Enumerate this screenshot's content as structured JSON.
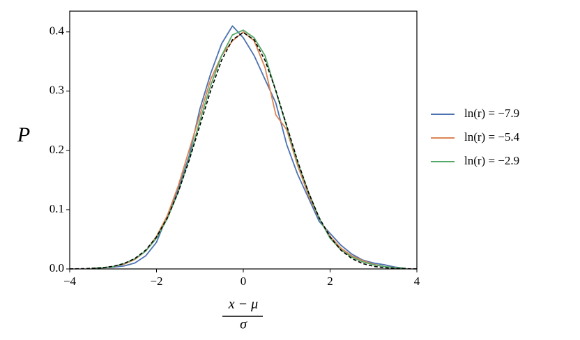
{
  "chart_data": {
    "type": "line",
    "ylabel": "P",
    "xlabel_numerator": "x − μ",
    "xlabel_denominator": "σ",
    "x": [
      -4,
      -3.75,
      -3.5,
      -3.25,
      -3,
      -2.75,
      -2.5,
      -2.25,
      -2,
      -1.75,
      -1.5,
      -1.25,
      -1,
      -0.75,
      -0.5,
      -0.25,
      0,
      0.25,
      0.5,
      0.75,
      1,
      1.25,
      1.5,
      1.75,
      2,
      2.25,
      2.5,
      2.75,
      3,
      3.25,
      3.5,
      3.75,
      4
    ],
    "series": [
      {
        "name": "ln(r) = −7.9",
        "color": "#4c72b0",
        "values": [
          null,
          null,
          0.001,
          0.002,
          0.003,
          0.005,
          0.01,
          0.022,
          0.045,
          0.09,
          0.135,
          0.19,
          0.27,
          0.33,
          0.38,
          0.41,
          0.39,
          0.36,
          0.32,
          0.28,
          0.21,
          0.16,
          0.12,
          0.08,
          0.06,
          0.04,
          0.025,
          0.015,
          0.01,
          0.007,
          0.003,
          0.001,
          null
        ]
      },
      {
        "name": "ln(r) = −5.4",
        "color": "#dd8452",
        "values": [
          null,
          null,
          0.001,
          0.002,
          0.004,
          0.008,
          0.016,
          0.03,
          0.055,
          0.09,
          0.14,
          0.2,
          0.26,
          0.32,
          0.36,
          0.385,
          0.4,
          0.385,
          0.34,
          0.26,
          0.235,
          0.175,
          0.125,
          0.085,
          0.055,
          0.035,
          0.022,
          0.014,
          0.008,
          0.004,
          0.002,
          0.001,
          null
        ]
      },
      {
        "name": "ln(r) = −2.9",
        "color": "#55a868",
        "values": [
          null,
          null,
          0.001,
          0.002,
          0.004,
          0.009,
          0.017,
          0.03,
          0.052,
          0.085,
          0.13,
          0.185,
          0.25,
          0.31,
          0.36,
          0.395,
          0.403,
          0.39,
          0.36,
          0.3,
          0.24,
          0.18,
          0.13,
          0.085,
          0.052,
          0.032,
          0.02,
          0.012,
          0.007,
          0.004,
          0.002,
          0.001,
          null
        ]
      }
    ],
    "reference": {
      "color": "#000000",
      "dashed": true,
      "values": [
        0.0001,
        0.0004,
        0.0009,
        0.002,
        0.0044,
        0.0091,
        0.0175,
        0.0317,
        0.054,
        0.0863,
        0.1295,
        0.1826,
        0.242,
        0.3011,
        0.3521,
        0.3867,
        0.3989,
        0.3867,
        0.3521,
        0.3011,
        0.242,
        0.1826,
        0.1295,
        0.0863,
        0.054,
        0.0317,
        0.0175,
        0.0091,
        0.0044,
        0.002,
        0.0009,
        0.0004,
        0.0001
      ]
    },
    "xlim": [
      -4,
      4
    ],
    "ylim": [
      0,
      0.435
    ],
    "xticks": [
      {
        "value": -4,
        "label": "−4"
      },
      {
        "value": -2,
        "label": "−2"
      },
      0,
      2,
      4
    ],
    "yticks": [
      {
        "value": 0,
        "label": "0.0"
      },
      0.1,
      0.2,
      0.3,
      0.4
    ],
    "legend": "outside right",
    "grid": false
  }
}
